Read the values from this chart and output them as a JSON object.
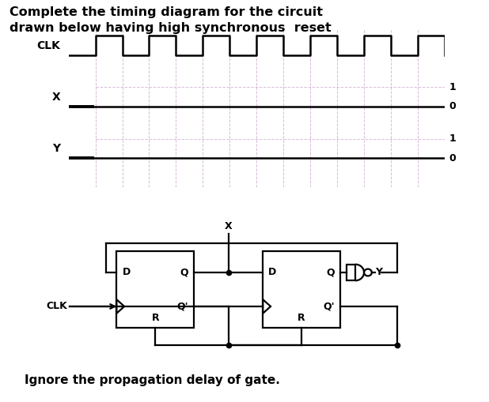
{
  "title_line1": "Complete the timing diagram for the circuit",
  "title_line2": "drawn below having high synchronous  reset",
  "title_fontsize": 11.5,
  "title_fontweight": "bold",
  "bg_color": "#ffffff",
  "grid_color": "#c8a0c8",
  "grid_alpha": 0.7,
  "ignore_text": "Ignore the propagation delay of gate.",
  "ignore_fontsize": 11,
  "ignore_fontweight": "bold",
  "num_half_periods": 14,
  "clk_initial_low": 1,
  "lw_signal": 1.8,
  "lw_circuit": 1.6
}
